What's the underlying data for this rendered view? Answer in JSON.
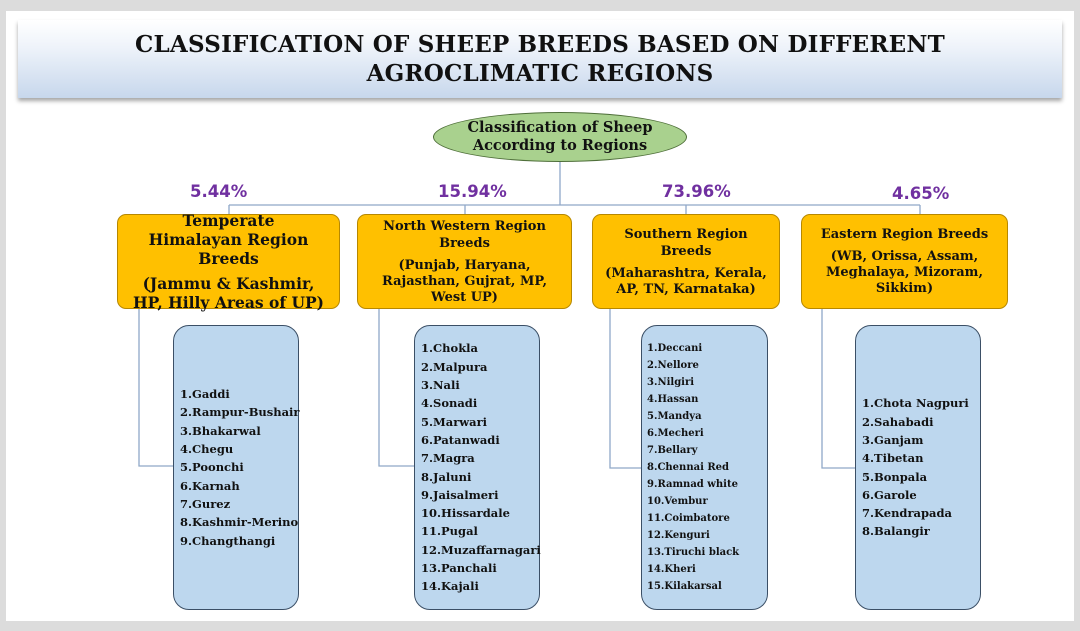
{
  "title": "CLASSIFICATION OF SHEEP BREEDS BASED ON DIFFERENT AGROCLIMATIC REGIONS",
  "root": {
    "line1": "Classification of Sheep",
    "line2": "According to Regions"
  },
  "regions": [
    {
      "percent": "5.44%",
      "name": "Temperate Himalayan Region Breeds",
      "states": "(Jammu & Kashmir, HP, Hilly Areas of UP)",
      "breeds": [
        "Gaddi",
        "Rampur-Bushair",
        "Bhakarwal",
        "Chegu",
        "Poonchi",
        "Karnah",
        "Gurez",
        "Kashmir-Merino",
        "Changthangi"
      ]
    },
    {
      "percent": "15.94%",
      "name": "North Western Region Breeds",
      "states": "(Punjab, Haryana, Rajasthan, Gujrat, MP, West UP)",
      "breeds": [
        "Chokla",
        "Malpura",
        "Nali",
        "Sonadi",
        "Marwari",
        "Patanwadi",
        "Magra",
        "Jaluni",
        "Jaisalmeri",
        "Hissardale",
        "Pugal",
        "Muzaffarnagari",
        "Panchali",
        "Kajali"
      ]
    },
    {
      "percent": "73.96%",
      "name": "Southern Region Breeds",
      "states": "(Maharashtra, Kerala, AP, TN, Karnataka)",
      "breeds": [
        "Deccani",
        "Nellore",
        "Nilgiri",
        "Hassan",
        "Mandya",
        "Mecheri",
        "Bellary",
        "Chennai Red",
        "Ramnad white",
        "Vembur",
        "Coimbatore",
        "Kenguri",
        "Tiruchi black",
        "Kheri",
        "Kilakarsal"
      ]
    },
    {
      "percent": "4.65%",
      "name": "Eastern Region Breeds",
      "states": "(WB, Orissa, Assam, Meghalaya, Mizoram, Sikkim)",
      "breeds": [
        "Chota Nagpuri",
        "Sahabadi",
        "Ganjam",
        "Tibetan",
        "Bonpala",
        "Garole",
        "Kendrapada",
        "Balangir"
      ]
    }
  ],
  "colors": {
    "root_fill": "#a9d18e",
    "region_fill": "#ffc000",
    "list_fill": "#bdd7ee",
    "percent_text": "#7030a0",
    "connector": "#8fa8c8"
  }
}
